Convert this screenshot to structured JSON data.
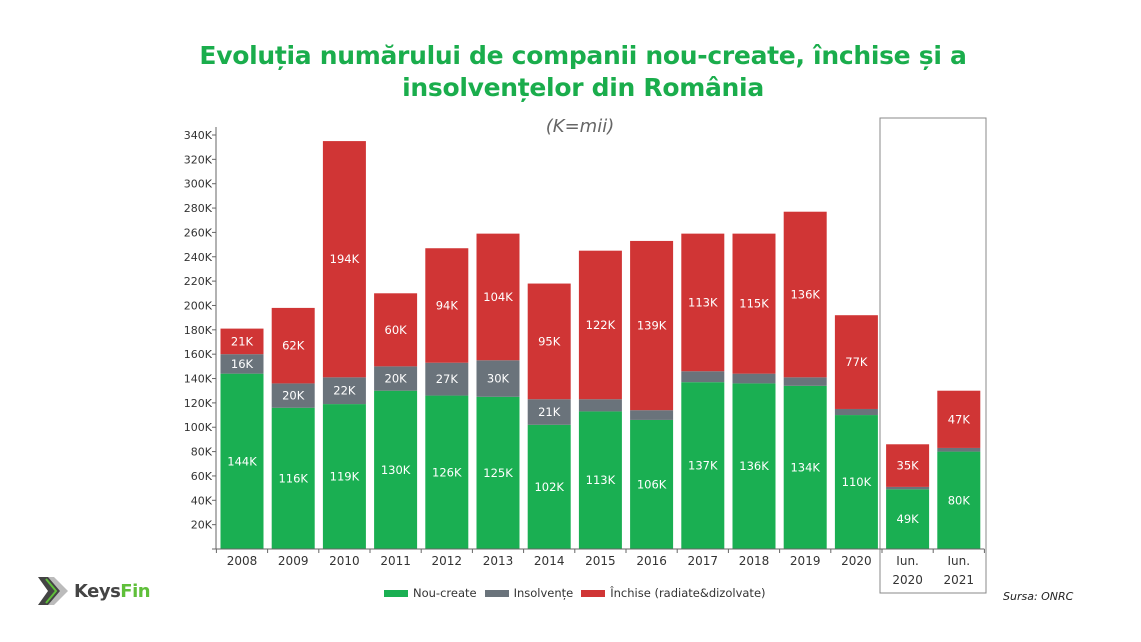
{
  "chart_data": {
    "type": "bar",
    "stacked": true,
    "title": "Evoluția numărului de companii nou-create, închise și a insolvențelor din România",
    "subtitle": "(K=mii)",
    "xlabel": "",
    "ylabel": "",
    "ylim": [
      0,
      340
    ],
    "yticks": [
      0,
      20,
      40,
      60,
      80,
      100,
      120,
      140,
      160,
      180,
      200,
      220,
      240,
      260,
      280,
      300,
      320,
      340
    ],
    "ytick_labels": [
      "",
      "20K",
      "40K",
      "60K",
      "80K",
      "100K",
      "120K",
      "140K",
      "160K",
      "180K",
      "200K",
      "220K",
      "240K",
      "260K",
      "280K",
      "300K",
      "320K",
      "340K"
    ],
    "categories": [
      "2008",
      "2009",
      "2010",
      "2011",
      "2012",
      "2013",
      "2014",
      "2015",
      "2016",
      "2017",
      "2018",
      "2019",
      "2020",
      "Iun. 2020",
      "Iun. 2021"
    ],
    "category_lines": [
      [
        "2008"
      ],
      [
        "2009"
      ],
      [
        "2010"
      ],
      [
        "2011"
      ],
      [
        "2012"
      ],
      [
        "2013"
      ],
      [
        "2014"
      ],
      [
        "2015"
      ],
      [
        "2016"
      ],
      [
        "2017"
      ],
      [
        "2018"
      ],
      [
        "2019"
      ],
      [
        "2020"
      ],
      [
        "Iun.",
        "2020"
      ],
      [
        "Iun.",
        "2021"
      ]
    ],
    "highlighted_categories": [
      "Iun. 2020",
      "Iun. 2021"
    ],
    "series": [
      {
        "name": "Nou-create",
        "color": "#1aaf52",
        "values": [
          144,
          116,
          119,
          130,
          126,
          125,
          102,
          113,
          106,
          137,
          136,
          134,
          110,
          49,
          80
        ],
        "labels": [
          "144K",
          "116K",
          "119K",
          "130K",
          "126K",
          "125K",
          "102K",
          "113K",
          "106K",
          "137K",
          "136K",
          "134K",
          "110K",
          "49K",
          "80K"
        ]
      },
      {
        "name": "Insolvențe",
        "color": "#6a737b",
        "values": [
          16,
          20,
          22,
          20,
          27,
          30,
          21,
          10,
          8,
          9,
          8,
          7,
          5,
          2,
          3
        ],
        "labels": [
          "16K",
          "20K",
          "22K",
          "20K",
          "27K",
          "30K",
          "21K",
          "",
          "",
          "",
          "",
          "",
          "",
          "",
          ""
        ]
      },
      {
        "name": "Închise (radiate&dizolvate)",
        "color": "#d03535",
        "values": [
          21,
          62,
          194,
          60,
          94,
          104,
          95,
          122,
          139,
          113,
          115,
          136,
          77,
          35,
          47
        ],
        "labels": [
          "21K",
          "62K",
          "194K",
          "60K",
          "94K",
          "104K",
          "95K",
          "122K",
          "139K",
          "113K",
          "115K",
          "136K",
          "77K",
          "35K",
          "47K"
        ]
      }
    ],
    "legend_position": "bottom-center",
    "grid": false
  },
  "header": {
    "title_line1": "Evoluția numărului de companii nou-create, închise și a",
    "title_line2": "insolvențelor din România",
    "subtitle": "(K=mii)"
  },
  "legend": {
    "items": [
      {
        "label": "Nou-create",
        "color": "#1aaf52"
      },
      {
        "label": "Insolvențe",
        "color": "#6a737b"
      },
      {
        "label": "Închise (radiate&dizolvate)",
        "color": "#d03535"
      }
    ]
  },
  "footer": {
    "source": "Sursa: ONRC",
    "logo_part1": "Keys",
    "logo_part2": "Fin",
    "logo_icon": "chevron-arrow-icon"
  }
}
